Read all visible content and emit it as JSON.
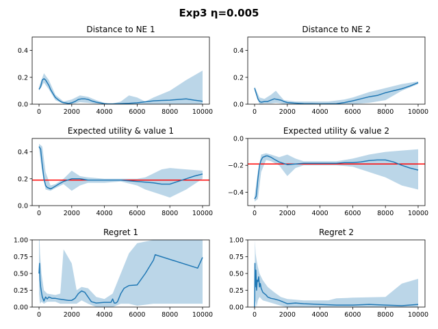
{
  "figure": {
    "title": "Exp3 η=0.005"
  },
  "chart_data": [
    {
      "type": "line",
      "title": "Distance to NE 1",
      "xlim": [
        -420,
        10420
      ],
      "ylim": [
        0,
        0.5
      ],
      "xticks": [
        0,
        2000,
        4000,
        6000,
        8000,
        10000
      ],
      "yticks": [
        0.0,
        0.2,
        0.4
      ],
      "ytick_labels": [
        "0.0",
        "0.2",
        "0.4"
      ],
      "series": [
        {
          "name": "mean",
          "color": "#1f77b4",
          "x": [
            0,
            100,
            200,
            300,
            400,
            500,
            600,
            700,
            800,
            900,
            1000,
            1200,
            1400,
            1600,
            1800,
            2000,
            2200,
            2400,
            2600,
            2800,
            3000,
            3200,
            3500,
            3800,
            4000,
            4200,
            4500,
            5000,
            5500,
            6000,
            6500,
            7000,
            7500,
            8000,
            8500,
            9000,
            9500,
            10000
          ],
          "y": [
            0.11,
            0.13,
            0.18,
            0.19,
            0.18,
            0.16,
            0.14,
            0.11,
            0.09,
            0.07,
            0.05,
            0.03,
            0.015,
            0.01,
            0.005,
            0.01,
            0.02,
            0.035,
            0.04,
            0.04,
            0.035,
            0.025,
            0.015,
            0.008,
            0.003,
            0.001,
            0.002,
            0.004,
            0.006,
            0.01,
            0.018,
            0.025,
            0.028,
            0.03,
            0.035,
            0.04,
            0.03,
            0.022
          ]
        }
      ],
      "band": {
        "x": [
          0,
          300,
          600,
          1000,
          1500,
          2000,
          2500,
          3000,
          3500,
          4000,
          4500,
          5000,
          5500,
          6000,
          6500,
          7000,
          8000,
          9000,
          10000
        ],
        "lower": [
          0.1,
          0.16,
          0.11,
          0.03,
          0.002,
          0,
          0.015,
          0.01,
          0.003,
          0,
          0,
          0,
          0,
          0,
          0,
          0,
          0,
          0,
          0
        ],
        "upper": [
          0.13,
          0.23,
          0.18,
          0.07,
          0.02,
          0.035,
          0.065,
          0.055,
          0.03,
          0.01,
          0.005,
          0.02,
          0.065,
          0.05,
          0.02,
          0.05,
          0.1,
          0.18,
          0.25
        ]
      }
    },
    {
      "type": "line",
      "title": "Distance to NE 2",
      "xlim": [
        -420,
        10420
      ],
      "ylim": [
        0,
        0.5
      ],
      "xticks": [
        0,
        2000,
        4000,
        6000,
        8000,
        10000
      ],
      "yticks": [
        0.0,
        0.2,
        0.4
      ],
      "ytick_labels": [
        "0.0",
        "0.2",
        "0.4"
      ],
      "series": [
        {
          "name": "mean",
          "color": "#1f77b4",
          "x": [
            0,
            100,
            200,
            300,
            400,
            600,
            800,
            1000,
            1200,
            1400,
            1600,
            1800,
            2000,
            2400,
            3000,
            3500,
            4000,
            5000,
            5500,
            6000,
            6500,
            7000,
            7500,
            8000,
            8500,
            9000,
            9500,
            10000
          ],
          "y": [
            0.12,
            0.08,
            0.04,
            0.02,
            0.015,
            0.02,
            0.02,
            0.03,
            0.04,
            0.035,
            0.03,
            0.02,
            0.012,
            0.008,
            0.004,
            0.003,
            0.002,
            0.003,
            0.012,
            0.025,
            0.04,
            0.055,
            0.065,
            0.085,
            0.1,
            0.115,
            0.135,
            0.16
          ]
        }
      ],
      "band": {
        "x": [
          0,
          300,
          600,
          1000,
          1300,
          1500,
          1800,
          2500,
          3500,
          4500,
          5500,
          6000,
          7000,
          8000,
          9000,
          10000
        ],
        "lower": [
          0.1,
          0,
          0.005,
          0.005,
          0.01,
          0.008,
          0,
          0,
          0,
          0,
          0,
          0,
          0.01,
          0.03,
          0.1,
          0.15
        ],
        "upper": [
          0.13,
          0.05,
          0.04,
          0.07,
          0.1,
          0.07,
          0.03,
          0.02,
          0.02,
          0.02,
          0.035,
          0.05,
          0.09,
          0.12,
          0.15,
          0.17
        ]
      }
    },
    {
      "type": "line",
      "title": "Expected utility & value 1",
      "xlim": [
        -420,
        10420
      ],
      "ylim": [
        0,
        0.5
      ],
      "xticks": [
        0,
        2000,
        4000,
        6000,
        8000,
        10000
      ],
      "yticks": [
        0.0,
        0.2,
        0.4
      ],
      "ytick_labels": [
        "0.0",
        "0.2",
        "0.4"
      ],
      "hline": {
        "y": 0.19,
        "color": "#ff0000"
      },
      "series": [
        {
          "name": "mean",
          "color": "#1f77b4",
          "x": [
            0,
            100,
            200,
            300,
            400,
            500,
            600,
            700,
            800,
            1000,
            1200,
            1500,
            2000,
            2500,
            3000,
            4000,
            5000,
            5500,
            6000,
            6500,
            7000,
            7500,
            8000,
            8500,
            9000,
            9500,
            10000
          ],
          "y": [
            0.44,
            0.42,
            0.3,
            0.2,
            0.15,
            0.135,
            0.13,
            0.125,
            0.13,
            0.145,
            0.16,
            0.18,
            0.2,
            0.2,
            0.19,
            0.19,
            0.19,
            0.185,
            0.18,
            0.175,
            0.17,
            0.16,
            0.16,
            0.18,
            0.2,
            0.22,
            0.235
          ]
        }
      ],
      "band": {
        "x": [
          0,
          200,
          400,
          700,
          1000,
          1500,
          2000,
          2500,
          3000,
          4000,
          5000,
          6000,
          6500,
          7000,
          7500,
          8000,
          9000,
          10000
        ],
        "lower": [
          0.42,
          0.25,
          0.12,
          0.11,
          0.13,
          0.16,
          0.11,
          0.15,
          0.17,
          0.17,
          0.18,
          0.15,
          0.12,
          0.1,
          0.08,
          0.06,
          0.12,
          0.2
        ],
        "upper": [
          0.46,
          0.44,
          0.25,
          0.15,
          0.16,
          0.2,
          0.26,
          0.22,
          0.21,
          0.2,
          0.2,
          0.2,
          0.21,
          0.24,
          0.27,
          0.28,
          0.27,
          0.26
        ]
      }
    },
    {
      "type": "line",
      "title": "Expected utility & value 2",
      "xlim": [
        -420,
        10420
      ],
      "ylim": [
        -0.5,
        0
      ],
      "xticks": [
        0,
        2000,
        4000,
        6000,
        8000,
        10000
      ],
      "yticks": [
        -0.4,
        -0.2,
        0.0
      ],
      "ytick_labels": [
        "−0.4",
        "−0.2",
        "0.0"
      ],
      "hline": {
        "y": -0.19,
        "color": "#ff0000"
      },
      "series": [
        {
          "name": "mean",
          "color": "#1f77b4",
          "x": [
            0,
            100,
            200,
            300,
            400,
            500,
            600,
            700,
            800,
            1000,
            1200,
            1500,
            2000,
            2500,
            3000,
            4000,
            5000,
            5500,
            6000,
            6500,
            7000,
            7500,
            8000,
            8500,
            9000,
            9500,
            10000
          ],
          "y": [
            -0.45,
            -0.43,
            -0.3,
            -0.2,
            -0.16,
            -0.14,
            -0.135,
            -0.13,
            -0.13,
            -0.14,
            -0.155,
            -0.175,
            -0.195,
            -0.19,
            -0.185,
            -0.185,
            -0.185,
            -0.18,
            -0.18,
            -0.175,
            -0.165,
            -0.16,
            -0.16,
            -0.175,
            -0.2,
            -0.22,
            -0.235
          ]
        }
      ],
      "band": {
        "x": [
          0,
          200,
          400,
          700,
          1000,
          1500,
          2000,
          2500,
          3000,
          4000,
          5000,
          6000,
          7000,
          8000,
          9000,
          10000
        ],
        "lower": [
          -0.47,
          -0.45,
          -0.25,
          -0.16,
          -0.17,
          -0.2,
          -0.28,
          -0.22,
          -0.2,
          -0.2,
          -0.2,
          -0.21,
          -0.25,
          -0.29,
          -0.35,
          -0.38
        ],
        "upper": [
          -0.43,
          -0.25,
          -0.12,
          -0.11,
          -0.12,
          -0.14,
          -0.12,
          -0.15,
          -0.17,
          -0.17,
          -0.17,
          -0.15,
          -0.12,
          -0.1,
          -0.09,
          -0.08
        ]
      }
    },
    {
      "type": "line",
      "title": "Regret 1",
      "xlim": [
        -420,
        10420
      ],
      "ylim": [
        0,
        1.0
      ],
      "xticks": [
        0,
        2000,
        4000,
        6000,
        8000,
        10000
      ],
      "yticks": [
        0.0,
        0.25,
        0.5,
        0.75,
        1.0
      ],
      "ytick_labels": [
        "0.00",
        "0.25",
        "0.50",
        "0.75",
        "1.00"
      ],
      "series": [
        {
          "name": "mean",
          "color": "#1f77b4",
          "x": [
            0,
            30,
            60,
            100,
            150,
            200,
            250,
            300,
            350,
            400,
            500,
            600,
            700,
            800,
            1000,
            1200,
            1500,
            1800,
            2000,
            2200,
            2400,
            2600,
            2800,
            3000,
            3200,
            3500,
            4000,
            4400,
            4500,
            4600,
            4700,
            4800,
            5000,
            5200,
            5500,
            6000,
            6500,
            7000,
            7100,
            9700,
            10000
          ],
          "y": [
            0.5,
            0.65,
            0.4,
            0.3,
            0.22,
            0.15,
            0.12,
            0.09,
            0.12,
            0.15,
            0.12,
            0.15,
            0.14,
            0.13,
            0.13,
            0.12,
            0.11,
            0.1,
            0.1,
            0.13,
            0.2,
            0.24,
            0.22,
            0.15,
            0.08,
            0.06,
            0.07,
            0.07,
            0.12,
            0.06,
            0.06,
            0.08,
            0.2,
            0.28,
            0.32,
            0.33,
            0.5,
            0.7,
            0.78,
            0.58,
            0.74
          ]
        }
      ],
      "band": {
        "x": [
          0,
          30,
          60,
          150,
          300,
          500,
          1000,
          1300,
          1500,
          2000,
          2300,
          2600,
          3000,
          3500,
          4000,
          4500,
          5000,
          5500,
          6000,
          7000,
          8000,
          10000
        ],
        "lower": [
          0.2,
          0.1,
          0.05,
          0.08,
          0.05,
          0.08,
          0.08,
          0.05,
          0.05,
          0.05,
          0.05,
          0.1,
          0.05,
          0.0,
          0.0,
          0.0,
          0.05,
          0.05,
          0.02,
          0.05,
          0.05,
          0.05
        ],
        "upper": [
          1.0,
          1.0,
          0.8,
          0.5,
          0.25,
          0.2,
          0.18,
          0.2,
          0.86,
          0.65,
          0.25,
          0.3,
          0.28,
          0.15,
          0.12,
          0.2,
          0.5,
          0.8,
          0.95,
          1.0,
          1.0,
          1.0
        ]
      }
    },
    {
      "type": "line",
      "title": "Regret 2",
      "xlim": [
        -420,
        10420
      ],
      "ylim": [
        0,
        1.0
      ],
      "xticks": [
        0,
        2000,
        4000,
        6000,
        8000,
        10000
      ],
      "yticks": [
        0.0,
        0.25,
        0.5,
        0.75,
        1.0
      ],
      "ytick_labels": [
        "0.00",
        "0.25",
        "0.50",
        "0.75",
        "1.00"
      ],
      "series": [
        {
          "name": "mean",
          "color": "#1f77b4",
          "x": [
            0,
            20,
            40,
            80,
            120,
            160,
            200,
            250,
            300,
            350,
            400,
            500,
            600,
            700,
            800,
            1000,
            1200,
            1500,
            2000,
            2500,
            3000,
            4000,
            5000,
            6000,
            7000,
            8000,
            9000,
            10000
          ],
          "y": [
            0.0,
            0.65,
            0.3,
            0.55,
            0.25,
            0.4,
            0.38,
            0.45,
            0.3,
            0.35,
            0.28,
            0.22,
            0.2,
            0.18,
            0.15,
            0.13,
            0.12,
            0.1,
            0.05,
            0.06,
            0.05,
            0.04,
            0.03,
            0.03,
            0.04,
            0.03,
            0.02,
            0.04
          ]
        }
      ],
      "band": {
        "x": [
          0,
          20,
          60,
          120,
          200,
          300,
          500,
          800,
          1200,
          1600,
          2000,
          3000,
          4500,
          5000,
          6000,
          8000,
          9000,
          10000
        ],
        "lower": [
          0.0,
          0.0,
          0.1,
          0.0,
          0.1,
          0.15,
          0.1,
          0.08,
          0.05,
          0.02,
          0.0,
          0.0,
          0.0,
          0.0,
          0.0,
          0.0,
          0.0,
          0.0
        ],
        "upper": [
          0.0,
          1.0,
          0.8,
          0.7,
          0.6,
          0.5,
          0.4,
          0.3,
          0.22,
          0.15,
          0.12,
          0.1,
          0.1,
          0.13,
          0.14,
          0.15,
          0.35,
          0.42
        ]
      }
    }
  ]
}
